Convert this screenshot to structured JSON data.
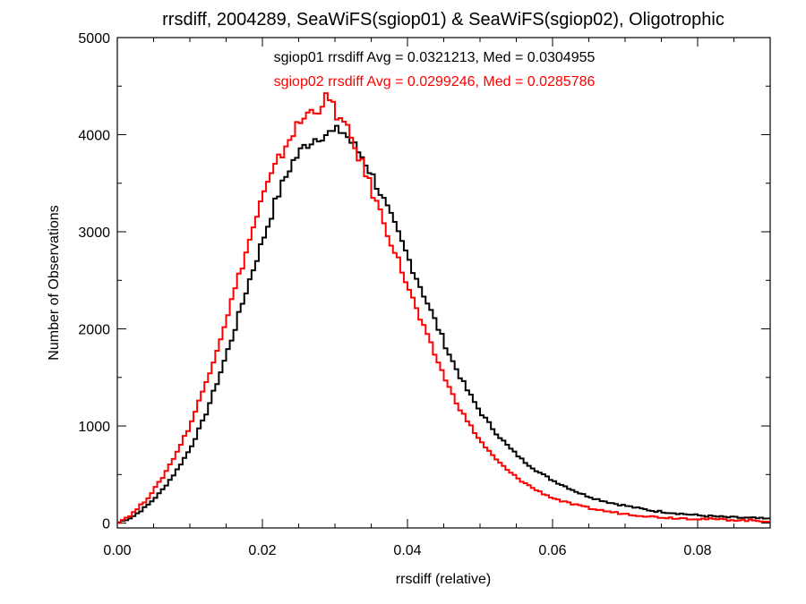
{
  "chart_data": {
    "type": "line",
    "step": true,
    "title": "rrsdiff, 2004289, SeaWiFS(sgiop01) & SeaWiFS(sgiop02), Oligotrophic",
    "xlabel": "rrsdiff (relative)",
    "ylabel": "Number of Observations",
    "xlim": [
      0.0,
      0.09
    ],
    "ylim": [
      -50,
      5000
    ],
    "x_ticks": [
      0.0,
      0.02,
      0.04,
      0.06,
      0.08
    ],
    "x_tick_labels": [
      "0.00",
      "0.02",
      "0.04",
      "0.06",
      "0.08"
    ],
    "y_ticks": [
      0,
      1000,
      2000,
      3000,
      4000,
      5000
    ],
    "y_tick_labels": [
      "0",
      "1000",
      "2000",
      "3000",
      "4000",
      "5000"
    ],
    "grid": false,
    "series": [
      {
        "color": "#000000",
        "stats_label": "sgiop01 rrsdiff Avg = 0.0321213, Med = 0.0304955",
        "x": [
          0.0,
          0.002,
          0.004,
          0.006,
          0.008,
          0.01,
          0.012,
          0.014,
          0.016,
          0.018,
          0.02,
          0.022,
          0.024,
          0.026,
          0.028,
          0.03,
          0.031,
          0.032,
          0.034,
          0.036,
          0.038,
          0.04,
          0.042,
          0.044,
          0.046,
          0.048,
          0.05,
          0.052,
          0.054,
          0.056,
          0.058,
          0.06,
          0.062,
          0.064,
          0.066,
          0.068,
          0.07,
          0.072,
          0.074,
          0.076,
          0.078,
          0.08,
          0.082,
          0.084,
          0.086,
          0.088,
          0.09
        ],
        "y": [
          0,
          60,
          170,
          320,
          520,
          760,
          1080,
          1500,
          1950,
          2450,
          2900,
          3350,
          3700,
          3900,
          4000,
          4020,
          4050,
          3950,
          3750,
          3450,
          3100,
          2750,
          2400,
          2050,
          1700,
          1400,
          1150,
          950,
          780,
          640,
          530,
          440,
          370,
          300,
          250,
          210,
          180,
          150,
          125,
          110,
          95,
          80,
          70,
          60,
          55,
          50,
          40
        ]
      },
      {
        "color": "#ff0000",
        "stats_label": "sgiop02 rrsdiff Avg = 0.0299246, Med = 0.0285786",
        "x": [
          0.0,
          0.002,
          0.004,
          0.006,
          0.008,
          0.01,
          0.012,
          0.014,
          0.016,
          0.018,
          0.02,
          0.022,
          0.024,
          0.026,
          0.028,
          0.029,
          0.03,
          0.032,
          0.034,
          0.036,
          0.038,
          0.04,
          0.042,
          0.044,
          0.046,
          0.048,
          0.05,
          0.052,
          0.054,
          0.056,
          0.058,
          0.06,
          0.062,
          0.064,
          0.066,
          0.068,
          0.07,
          0.072,
          0.074,
          0.076,
          0.078,
          0.08,
          0.082,
          0.084,
          0.086,
          0.088,
          0.09
        ],
        "y": [
          0,
          90,
          240,
          440,
          700,
          1000,
          1400,
          1850,
          2350,
          2850,
          3350,
          3700,
          4000,
          4200,
          4300,
          4380,
          4250,
          4000,
          3650,
          3250,
          2850,
          2450,
          2050,
          1700,
          1350,
          1080,
          850,
          670,
          530,
          420,
          330,
          260,
          210,
          170,
          140,
          115,
          95,
          80,
          65,
          55,
          50,
          45,
          40,
          35,
          30,
          25,
          20
        ]
      }
    ]
  }
}
